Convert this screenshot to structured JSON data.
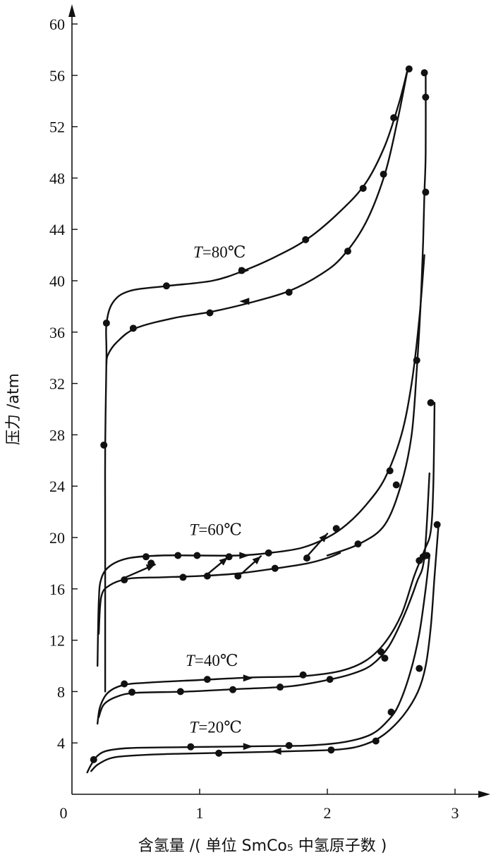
{
  "chart_data": {
    "type": "line",
    "xlabel": "含氢量 /( 单位 SmCo₅ 中氢原子数 )",
    "ylabel": "压力 /atm",
    "xlim": [
      0,
      3.1
    ],
    "ylim": [
      0,
      61
    ],
    "x_ticks": [
      "0",
      "1",
      "2",
      "3"
    ],
    "x_tick_values": [
      0,
      1,
      2,
      3
    ],
    "y_ticks": [
      "4",
      "8",
      "12",
      "16",
      "20",
      "24",
      "28",
      "32",
      "36",
      "40",
      "44",
      "48",
      "52",
      "56",
      "60"
    ],
    "y_tick_values": [
      4,
      8,
      12,
      16,
      20,
      24,
      28,
      32,
      36,
      40,
      44,
      48,
      52,
      56,
      60
    ],
    "series": [
      {
        "name": "T=80℃",
        "label_text": "=80℃",
        "label_var": "T",
        "absorption": {
          "curve": [
            [
              0.26,
              8
            ],
            [
              0.26,
              20
            ],
            [
              0.26,
              27
            ],
            [
              0.27,
              34
            ],
            [
              0.27,
              36.6
            ],
            [
              0.32,
              38.3
            ],
            [
              0.45,
              39.2
            ],
            [
              0.75,
              39.6
            ],
            [
              1.1,
              40.0
            ],
            [
              1.35,
              40.8
            ],
            [
              1.6,
              41.9
            ],
            [
              1.85,
              43.3
            ],
            [
              2.1,
              45.4
            ],
            [
              2.3,
              47.6
            ],
            [
              2.45,
              50.5
            ],
            [
              2.56,
              53.8
            ],
            [
              2.63,
              56.5
            ]
          ],
          "points": [
            [
              0.25,
              27.2
            ],
            [
              0.27,
              36.7
            ],
            [
              0.74,
              39.6
            ],
            [
              1.33,
              40.8
            ],
            [
              1.83,
              43.2
            ],
            [
              2.28,
              47.2
            ],
            [
              2.52,
              52.7
            ],
            [
              2.64,
              56.5
            ]
          ]
        },
        "desorption": {
          "curve": [
            [
              2.63,
              56.5
            ],
            [
              2.55,
              52.5
            ],
            [
              2.45,
              48.3
            ],
            [
              2.3,
              44.5
            ],
            [
              2.12,
              41.9
            ],
            [
              1.95,
              40.5
            ],
            [
              1.7,
              39.2
            ],
            [
              1.4,
              38.3
            ],
            [
              1.1,
              37.6
            ],
            [
              0.8,
              37.1
            ],
            [
              0.5,
              36.3
            ],
            [
              0.35,
              35.2
            ],
            [
              0.28,
              34.2
            ],
            [
              0.27,
              33.5
            ]
          ],
          "points": [
            [
              0.48,
              36.3
            ],
            [
              1.08,
              37.5
            ],
            [
              1.7,
              39.1
            ],
            [
              2.16,
              42.3
            ],
            [
              2.44,
              48.3
            ]
          ]
        },
        "steep_branch": {
          "curve": [
            [
              2.77,
              56.3
            ],
            [
              2.77,
              50.0
            ],
            [
              2.76,
              46.8
            ],
            [
              2.75,
              43.0
            ],
            [
              2.73,
              38.0
            ],
            [
              2.7,
              33.0
            ],
            [
              2.66,
              28.0
            ],
            [
              2.58,
              24.2
            ],
            [
              2.45,
              21.0
            ],
            [
              2.25,
              19.5
            ],
            [
              2.0,
              18.6
            ]
          ],
          "points": [
            [
              2.76,
              56.2
            ],
            [
              2.77,
              54.3
            ],
            [
              2.77,
              46.9
            ],
            [
              2.7,
              33.8
            ],
            [
              2.54,
              24.1
            ],
            [
              2.24,
              19.5
            ]
          ]
        }
      },
      {
        "name": "T=60℃",
        "label_text": "=60℃",
        "label_var": "T",
        "absorption": {
          "curve": [
            [
              0.2,
              10
            ],
            [
              0.21,
              15
            ],
            [
              0.23,
              16.8
            ],
            [
              0.3,
              17.8
            ],
            [
              0.45,
              18.4
            ],
            [
              0.7,
              18.6
            ],
            [
              1.0,
              18.6
            ],
            [
              1.3,
              18.6
            ],
            [
              1.55,
              18.8
            ],
            [
              1.8,
              19.2
            ],
            [
              2.0,
              20.0
            ],
            [
              2.15,
              21.0
            ],
            [
              2.3,
              22.5
            ],
            [
              2.45,
              24.6
            ],
            [
              2.58,
              28.0
            ],
            [
              2.66,
              32.0
            ],
            [
              2.72,
              37.0
            ],
            [
              2.76,
              42.0
            ]
          ],
          "points": [
            [
              0.58,
              18.5
            ],
            [
              0.83,
              18.6
            ],
            [
              0.98,
              18.6
            ],
            [
              1.23,
              18.5
            ],
            [
              1.54,
              18.8
            ],
            [
              2.07,
              20.7
            ],
            [
              2.49,
              25.2
            ]
          ]
        },
        "desorption": {
          "curve": [
            [
              0.21,
              12.5
            ],
            [
              0.23,
              15.4
            ],
            [
              0.3,
              16.3
            ],
            [
              0.45,
              16.8
            ],
            [
              0.7,
              16.9
            ],
            [
              1.0,
              17.0
            ],
            [
              1.3,
              17.2
            ],
            [
              1.6,
              17.6
            ],
            [
              1.85,
              18.0
            ],
            [
              2.0,
              18.4
            ],
            [
              2.1,
              18.8
            ]
          ],
          "points": [
            [
              0.41,
              16.7
            ],
            [
              0.87,
              16.9
            ],
            [
              1.06,
              17.0
            ],
            [
              1.3,
              17.0
            ],
            [
              1.59,
              17.6
            ],
            [
              1.84,
              18.4
            ]
          ]
        },
        "hysteresis_arrows": [
          [
            [
              0.42,
              16.9
            ],
            [
              0.65,
              17.9
            ]
          ],
          [
            [
              1.05,
              17.05
            ],
            [
              1.22,
              18.45
            ]
          ],
          [
            [
              1.33,
              17.2
            ],
            [
              1.48,
              18.55
            ]
          ],
          [
            [
              1.82,
              18.3
            ],
            [
              2.0,
              20.3
            ]
          ]
        ],
        "extra_points": [
          [
            0.62,
            18.0
          ]
        ]
      },
      {
        "name": "T=40℃",
        "label_text": "=40℃",
        "label_var": "T",
        "absorption": {
          "curve": [
            [
              0.2,
              5.5
            ],
            [
              0.22,
              6.8
            ],
            [
              0.28,
              7.9
            ],
            [
              0.4,
              8.5
            ],
            [
              0.6,
              8.7
            ],
            [
              1.0,
              8.9
            ],
            [
              1.4,
              9.1
            ],
            [
              1.8,
              9.2
            ],
            [
              2.1,
              9.6
            ],
            [
              2.3,
              10.4
            ],
            [
              2.45,
              11.8
            ],
            [
              2.58,
              14.0
            ],
            [
              2.68,
              17.0
            ],
            [
              2.76,
              19.0
            ],
            [
              2.81,
              20.5
            ],
            [
              2.83,
              24.0
            ],
            [
              2.84,
              30.5
            ]
          ],
          "points": [
            [
              0.41,
              8.6
            ],
            [
              1.06,
              8.95
            ],
            [
              1.81,
              9.3
            ],
            [
              2.42,
              11.1
            ],
            [
              2.81,
              30.5
            ],
            [
              2.75,
              18.5
            ]
          ]
        },
        "desorption": {
          "curve": [
            [
              2.8,
              25.0
            ],
            [
              2.76,
              18.5
            ],
            [
              2.7,
              16.5
            ],
            [
              2.6,
              13.9
            ],
            [
              2.48,
              11.5
            ],
            [
              2.35,
              10.1
            ],
            [
              2.2,
              9.4
            ],
            [
              2.0,
              8.9
            ],
            [
              1.7,
              8.4
            ],
            [
              1.3,
              8.2
            ],
            [
              0.9,
              8.0
            ],
            [
              0.5,
              7.9
            ],
            [
              0.35,
              7.6
            ],
            [
              0.25,
              7.0
            ],
            [
              0.21,
              6.0
            ]
          ],
          "points": [
            [
              0.47,
              7.95
            ],
            [
              0.85,
              8.0
            ],
            [
              1.26,
              8.15
            ],
            [
              1.63,
              8.35
            ],
            [
              2.02,
              8.95
            ],
            [
              2.45,
              10.6
            ],
            [
              2.72,
              18.2
            ]
          ]
        }
      },
      {
        "name": "T=20℃",
        "label_text": "=20℃",
        "label_var": "T",
        "absorption": {
          "curve": [
            [
              0.12,
              1.7
            ],
            [
              0.15,
              2.3
            ],
            [
              0.2,
              3.0
            ],
            [
              0.28,
              3.4
            ],
            [
              0.45,
              3.6
            ],
            [
              0.7,
              3.65
            ],
            [
              1.1,
              3.7
            ],
            [
              1.5,
              3.75
            ],
            [
              1.85,
              3.8
            ],
            [
              2.15,
              4.1
            ],
            [
              2.35,
              4.7
            ],
            [
              2.48,
              5.8
            ],
            [
              2.56,
              7.0
            ],
            [
              2.65,
              9.5
            ],
            [
              2.72,
              12.5
            ],
            [
              2.77,
              16.0
            ],
            [
              2.8,
              18.6
            ]
          ],
          "points": [
            [
              0.17,
              2.7
            ],
            [
              0.93,
              3.7
            ],
            [
              1.7,
              3.8
            ],
            [
              2.5,
              6.4
            ],
            [
              2.78,
              18.6
            ]
          ]
        },
        "desorption": {
          "curve": [
            [
              2.87,
              20.9
            ],
            [
              2.84,
              17.0
            ],
            [
              2.81,
              13.0
            ],
            [
              2.77,
              10.0
            ],
            [
              2.71,
              8.0
            ],
            [
              2.6,
              6.2
            ],
            [
              2.45,
              4.7
            ],
            [
              2.3,
              3.9
            ],
            [
              2.1,
              3.5
            ],
            [
              1.7,
              3.35
            ],
            [
              1.3,
              3.25
            ],
            [
              0.8,
              3.15
            ],
            [
              0.45,
              3.0
            ],
            [
              0.3,
              2.8
            ],
            [
              0.2,
              2.3
            ],
            [
              0.15,
              1.8
            ]
          ],
          "points": [
            [
              1.15,
              3.2
            ],
            [
              2.03,
              3.45
            ],
            [
              2.38,
              4.15
            ],
            [
              2.72,
              9.8
            ],
            [
              2.86,
              21.0
            ]
          ]
        }
      }
    ],
    "annotation_arrows": [
      {
        "series": "T=80℃",
        "at": [
          1.35,
          40.8
        ],
        "dir": "right"
      },
      {
        "series": "T=80℃",
        "at": [
          1.35,
          38.4
        ],
        "dir": "left"
      },
      {
        "series": "T=60℃",
        "at": [
          1.35,
          18.6
        ],
        "dir": "right"
      },
      {
        "series": "T=40℃",
        "at": [
          1.38,
          9.05
        ],
        "dir": "right"
      },
      {
        "series": "T=20℃",
        "at": [
          1.38,
          3.72
        ],
        "dir": "right"
      },
      {
        "series": "T=20℃",
        "at": [
          1.6,
          3.35
        ],
        "dir": "left"
      }
    ]
  }
}
